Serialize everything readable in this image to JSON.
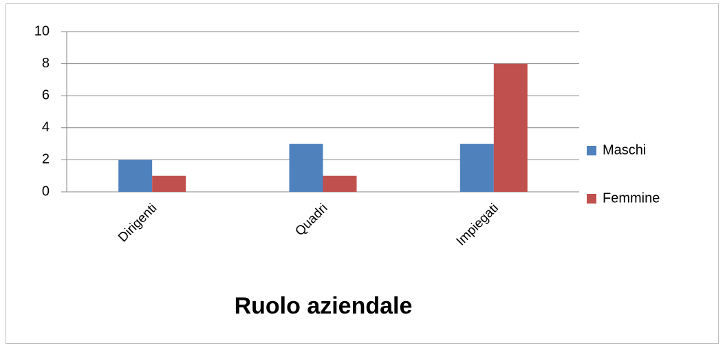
{
  "chart_data": {
    "type": "bar",
    "xlabel": "Ruolo aziendale",
    "categories": [
      "Dirigenti",
      "Quadri",
      "Impiegati"
    ],
    "series": [
      {
        "name": "Maschi",
        "color": "#4f81bd",
        "values": [
          2,
          3,
          3
        ]
      },
      {
        "name": "Femmine",
        "color": "#c0504d",
        "values": [
          1,
          1,
          8
        ]
      }
    ],
    "ylim": [
      0,
      10
    ],
    "yticks": [
      0,
      2,
      4,
      6,
      8,
      10
    ],
    "grid": true,
    "legend": "right"
  }
}
